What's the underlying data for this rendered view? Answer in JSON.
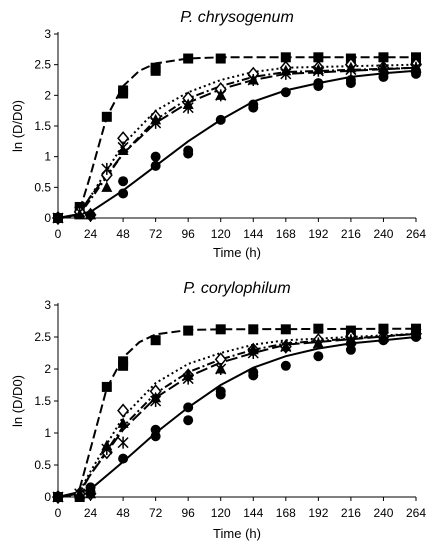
{
  "chart_data": [
    {
      "type": "scatter",
      "title": "P. chrysogenum",
      "xlabel": "Time (h)",
      "ylabel": "ln (D/D0)",
      "xlim": [
        0,
        264
      ],
      "ylim": [
        0,
        3
      ],
      "xticks": [
        "0",
        "24",
        "48",
        "72",
        "96",
        "120",
        "144",
        "168",
        "192",
        "216",
        "240",
        "264"
      ],
      "yticks": [
        "0",
        "0.5",
        "1",
        "1.5",
        "2",
        "2.5",
        "3"
      ],
      "grid": false,
      "series": [
        {
          "marker": "square",
          "line": "dashed",
          "points": [
            [
              0,
              0
            ],
            [
              16,
              0.18
            ],
            [
              36,
              1.65
            ],
            [
              48,
              2.03
            ],
            [
              48,
              2.08
            ],
            [
              72,
              2.4
            ],
            [
              72,
              2.45
            ],
            [
              96,
              2.6
            ],
            [
              120,
              2.6
            ],
            [
              168,
              2.62
            ],
            [
              192,
              2.62
            ],
            [
              216,
              2.6
            ],
            [
              240,
              2.62
            ],
            [
              264,
              2.62
            ],
            [
              264,
              2.6
            ]
          ],
          "fit": [
            [
              0,
              0
            ],
            [
              15,
              0.05
            ],
            [
              24,
              0.7
            ],
            [
              36,
              1.65
            ],
            [
              48,
              2.15
            ],
            [
              60,
              2.4
            ],
            [
              72,
              2.52
            ],
            [
              96,
              2.6
            ],
            [
              120,
              2.62
            ],
            [
              264,
              2.62
            ]
          ]
        },
        {
          "marker": "diamond",
          "line": "dotted",
          "points": [
            [
              0,
              0
            ],
            [
              16,
              0.1
            ],
            [
              24,
              0.05
            ],
            [
              36,
              0.7
            ],
            [
              48,
              1.3
            ],
            [
              72,
              1.65
            ],
            [
              96,
              1.95
            ],
            [
              120,
              2.1
            ],
            [
              144,
              2.35
            ],
            [
              168,
              2.45
            ],
            [
              192,
              2.45
            ],
            [
              216,
              2.5
            ],
            [
              240,
              2.45
            ],
            [
              264,
              2.5
            ]
          ],
          "fit": [
            [
              0,
              0
            ],
            [
              15,
              0.05
            ],
            [
              24,
              0.35
            ],
            [
              48,
              1.2
            ],
            [
              72,
              1.75
            ],
            [
              96,
              2.05
            ],
            [
              120,
              2.25
            ],
            [
              144,
              2.38
            ],
            [
              168,
              2.45
            ],
            [
              264,
              2.5
            ]
          ]
        },
        {
          "marker": "triangle",
          "line": "dash-dot",
          "points": [
            [
              0,
              0
            ],
            [
              16,
              0.05
            ],
            [
              24,
              0.05
            ],
            [
              36,
              0.5
            ],
            [
              48,
              1.1
            ],
            [
              72,
              1.6
            ],
            [
              96,
              1.85
            ],
            [
              120,
              2.0
            ],
            [
              144,
              2.25
            ],
            [
              168,
              2.4
            ],
            [
              192,
              2.42
            ],
            [
              216,
              2.45
            ],
            [
              240,
              2.45
            ],
            [
              264,
              2.45
            ]
          ],
          "fit": [
            [
              0,
              0
            ],
            [
              15,
              0.03
            ],
            [
              24,
              0.3
            ],
            [
              48,
              1.05
            ],
            [
              72,
              1.6
            ],
            [
              96,
              1.95
            ],
            [
              120,
              2.15
            ],
            [
              144,
              2.3
            ],
            [
              168,
              2.38
            ],
            [
              264,
              2.45
            ]
          ]
        },
        {
          "marker": "asterisk",
          "line": "long-dash",
          "points": [
            [
              0,
              0
            ],
            [
              16,
              0.1
            ],
            [
              36,
              0.8
            ],
            [
              48,
              1.15
            ],
            [
              72,
              1.55
            ],
            [
              96,
              1.8
            ],
            [
              120,
              2.0
            ],
            [
              144,
              2.25
            ],
            [
              168,
              2.35
            ],
            [
              192,
              2.4
            ],
            [
              216,
              2.42
            ],
            [
              240,
              2.42
            ],
            [
              264,
              2.45
            ]
          ],
          "fit": [
            [
              0,
              0
            ],
            [
              15,
              0.05
            ],
            [
              24,
              0.35
            ],
            [
              48,
              1.05
            ],
            [
              72,
              1.55
            ],
            [
              96,
              1.88
            ],
            [
              120,
              2.1
            ],
            [
              144,
              2.25
            ],
            [
              168,
              2.35
            ],
            [
              264,
              2.45
            ]
          ]
        },
        {
          "marker": "circle",
          "line": "solid",
          "points": [
            [
              0,
              0
            ],
            [
              24,
              0.05
            ],
            [
              48,
              0.4
            ],
            [
              48,
              0.6
            ],
            [
              72,
              0.85
            ],
            [
              72,
              1.0
            ],
            [
              96,
              1.05
            ],
            [
              96,
              1.1
            ],
            [
              120,
              1.6
            ],
            [
              144,
              1.8
            ],
            [
              144,
              1.85
            ],
            [
              168,
              2.05
            ],
            [
              192,
              2.15
            ],
            [
              192,
              2.2
            ],
            [
              216,
              2.2
            ],
            [
              216,
              2.25
            ],
            [
              240,
              2.3
            ],
            [
              264,
              2.35
            ],
            [
              264,
              2.4
            ]
          ],
          "fit": [
            [
              0,
              0
            ],
            [
              24,
              0.1
            ],
            [
              48,
              0.45
            ],
            [
              72,
              0.85
            ],
            [
              96,
              1.25
            ],
            [
              120,
              1.6
            ],
            [
              144,
              1.9
            ],
            [
              168,
              2.08
            ],
            [
              192,
              2.2
            ],
            [
              216,
              2.3
            ],
            [
              240,
              2.36
            ],
            [
              264,
              2.4
            ]
          ]
        }
      ]
    },
    {
      "type": "scatter",
      "title": "P. corylophilum",
      "xlabel": "Time (h)",
      "ylabel": "ln (D/D0)",
      "xlim": [
        0,
        264
      ],
      "ylim": [
        0,
        3
      ],
      "xticks": [
        "0",
        "24",
        "48",
        "72",
        "96",
        "120",
        "144",
        "168",
        "192",
        "216",
        "240",
        "264"
      ],
      "yticks": [
        "0",
        "0.5",
        "1",
        "1.5",
        "2",
        "2.5",
        "3"
      ],
      "grid": false,
      "series": [
        {
          "marker": "square",
          "line": "dashed",
          "points": [
            [
              0,
              0
            ],
            [
              16,
              0.0
            ],
            [
              36,
              1.72
            ],
            [
              48,
              2.05
            ],
            [
              48,
              2.12
            ],
            [
              72,
              2.45
            ],
            [
              96,
              2.6
            ],
            [
              120,
              2.62
            ],
            [
              144,
              2.62
            ],
            [
              168,
              2.62
            ],
            [
              192,
              2.63
            ],
            [
              216,
              2.6
            ],
            [
              240,
              2.63
            ],
            [
              264,
              2.63
            ],
            [
              264,
              2.6
            ]
          ],
          "fit": [
            [
              0,
              0
            ],
            [
              15,
              0.05
            ],
            [
              24,
              0.75
            ],
            [
              36,
              1.7
            ],
            [
              48,
              2.18
            ],
            [
              60,
              2.42
            ],
            [
              72,
              2.54
            ],
            [
              96,
              2.61
            ],
            [
              120,
              2.62
            ],
            [
              264,
              2.63
            ]
          ]
        },
        {
          "marker": "diamond",
          "line": "dotted",
          "points": [
            [
              0,
              0
            ],
            [
              16,
              0.05
            ],
            [
              24,
              0.05
            ],
            [
              36,
              0.7
            ],
            [
              48,
              1.35
            ],
            [
              72,
              1.65
            ],
            [
              96,
              1.9
            ],
            [
              120,
              2.15
            ],
            [
              144,
              2.3
            ],
            [
              168,
              2.35
            ],
            [
              192,
              2.45
            ],
            [
              216,
              2.5
            ],
            [
              240,
              2.5
            ],
            [
              264,
              2.55
            ]
          ],
          "fit": [
            [
              0,
              0
            ],
            [
              15,
              0.05
            ],
            [
              24,
              0.4
            ],
            [
              48,
              1.25
            ],
            [
              72,
              1.78
            ],
            [
              96,
              2.08
            ],
            [
              120,
              2.25
            ],
            [
              144,
              2.38
            ],
            [
              168,
              2.45
            ],
            [
              264,
              2.55
            ]
          ]
        },
        {
          "marker": "triangle",
          "line": "dash-dot",
          "points": [
            [
              0,
              0
            ],
            [
              16,
              0.05
            ],
            [
              24,
              0.05
            ],
            [
              36,
              0.8
            ],
            [
              48,
              1.15
            ],
            [
              72,
              1.55
            ],
            [
              96,
              1.9
            ],
            [
              120,
              2.0
            ],
            [
              144,
              2.3
            ],
            [
              168,
              2.35
            ],
            [
              192,
              2.4
            ],
            [
              216,
              2.45
            ],
            [
              240,
              2.5
            ],
            [
              264,
              2.55
            ]
          ],
          "fit": [
            [
              0,
              0
            ],
            [
              15,
              0.03
            ],
            [
              24,
              0.35
            ],
            [
              48,
              1.1
            ],
            [
              72,
              1.62
            ],
            [
              96,
              1.95
            ],
            [
              120,
              2.15
            ],
            [
              144,
              2.3
            ],
            [
              168,
              2.4
            ],
            [
              264,
              2.55
            ]
          ]
        },
        {
          "marker": "asterisk",
          "line": "long-dash",
          "points": [
            [
              0,
              0
            ],
            [
              16,
              0.05
            ],
            [
              36,
              0.75
            ],
            [
              48,
              0.85
            ],
            [
              72,
              1.5
            ],
            [
              96,
              1.85
            ],
            [
              120,
              2.0
            ],
            [
              144,
              2.25
            ],
            [
              168,
              2.35
            ],
            [
              192,
              2.4
            ],
            [
              216,
              2.45
            ],
            [
              240,
              2.5
            ],
            [
              264,
              2.55
            ]
          ],
          "fit": [
            [
              0,
              0
            ],
            [
              15,
              0.05
            ],
            [
              24,
              0.35
            ],
            [
              48,
              1.05
            ],
            [
              72,
              1.55
            ],
            [
              96,
              1.88
            ],
            [
              120,
              2.1
            ],
            [
              144,
              2.25
            ],
            [
              168,
              2.38
            ],
            [
              264,
              2.55
            ]
          ]
        },
        {
          "marker": "circle",
          "line": "solid",
          "points": [
            [
              0,
              0
            ],
            [
              24,
              0.08
            ],
            [
              24,
              0.15
            ],
            [
              48,
              0.6
            ],
            [
              72,
              0.95
            ],
            [
              72,
              1.05
            ],
            [
              96,
              1.2
            ],
            [
              96,
              1.4
            ],
            [
              120,
              1.6
            ],
            [
              120,
              1.65
            ],
            [
              144,
              1.9
            ],
            [
              144,
              1.95
            ],
            [
              168,
              2.05
            ],
            [
              192,
              2.2
            ],
            [
              216,
              2.3
            ],
            [
              216,
              2.4
            ],
            [
              240,
              2.45
            ],
            [
              264,
              2.5
            ],
            [
              264,
              2.55
            ]
          ],
          "fit": [
            [
              0,
              0
            ],
            [
              24,
              0.12
            ],
            [
              48,
              0.55
            ],
            [
              72,
              1.0
            ],
            [
              96,
              1.4
            ],
            [
              120,
              1.75
            ],
            [
              144,
              2.02
            ],
            [
              168,
              2.2
            ],
            [
              192,
              2.32
            ],
            [
              216,
              2.4
            ],
            [
              240,
              2.45
            ],
            [
              264,
              2.5
            ]
          ]
        }
      ]
    }
  ]
}
